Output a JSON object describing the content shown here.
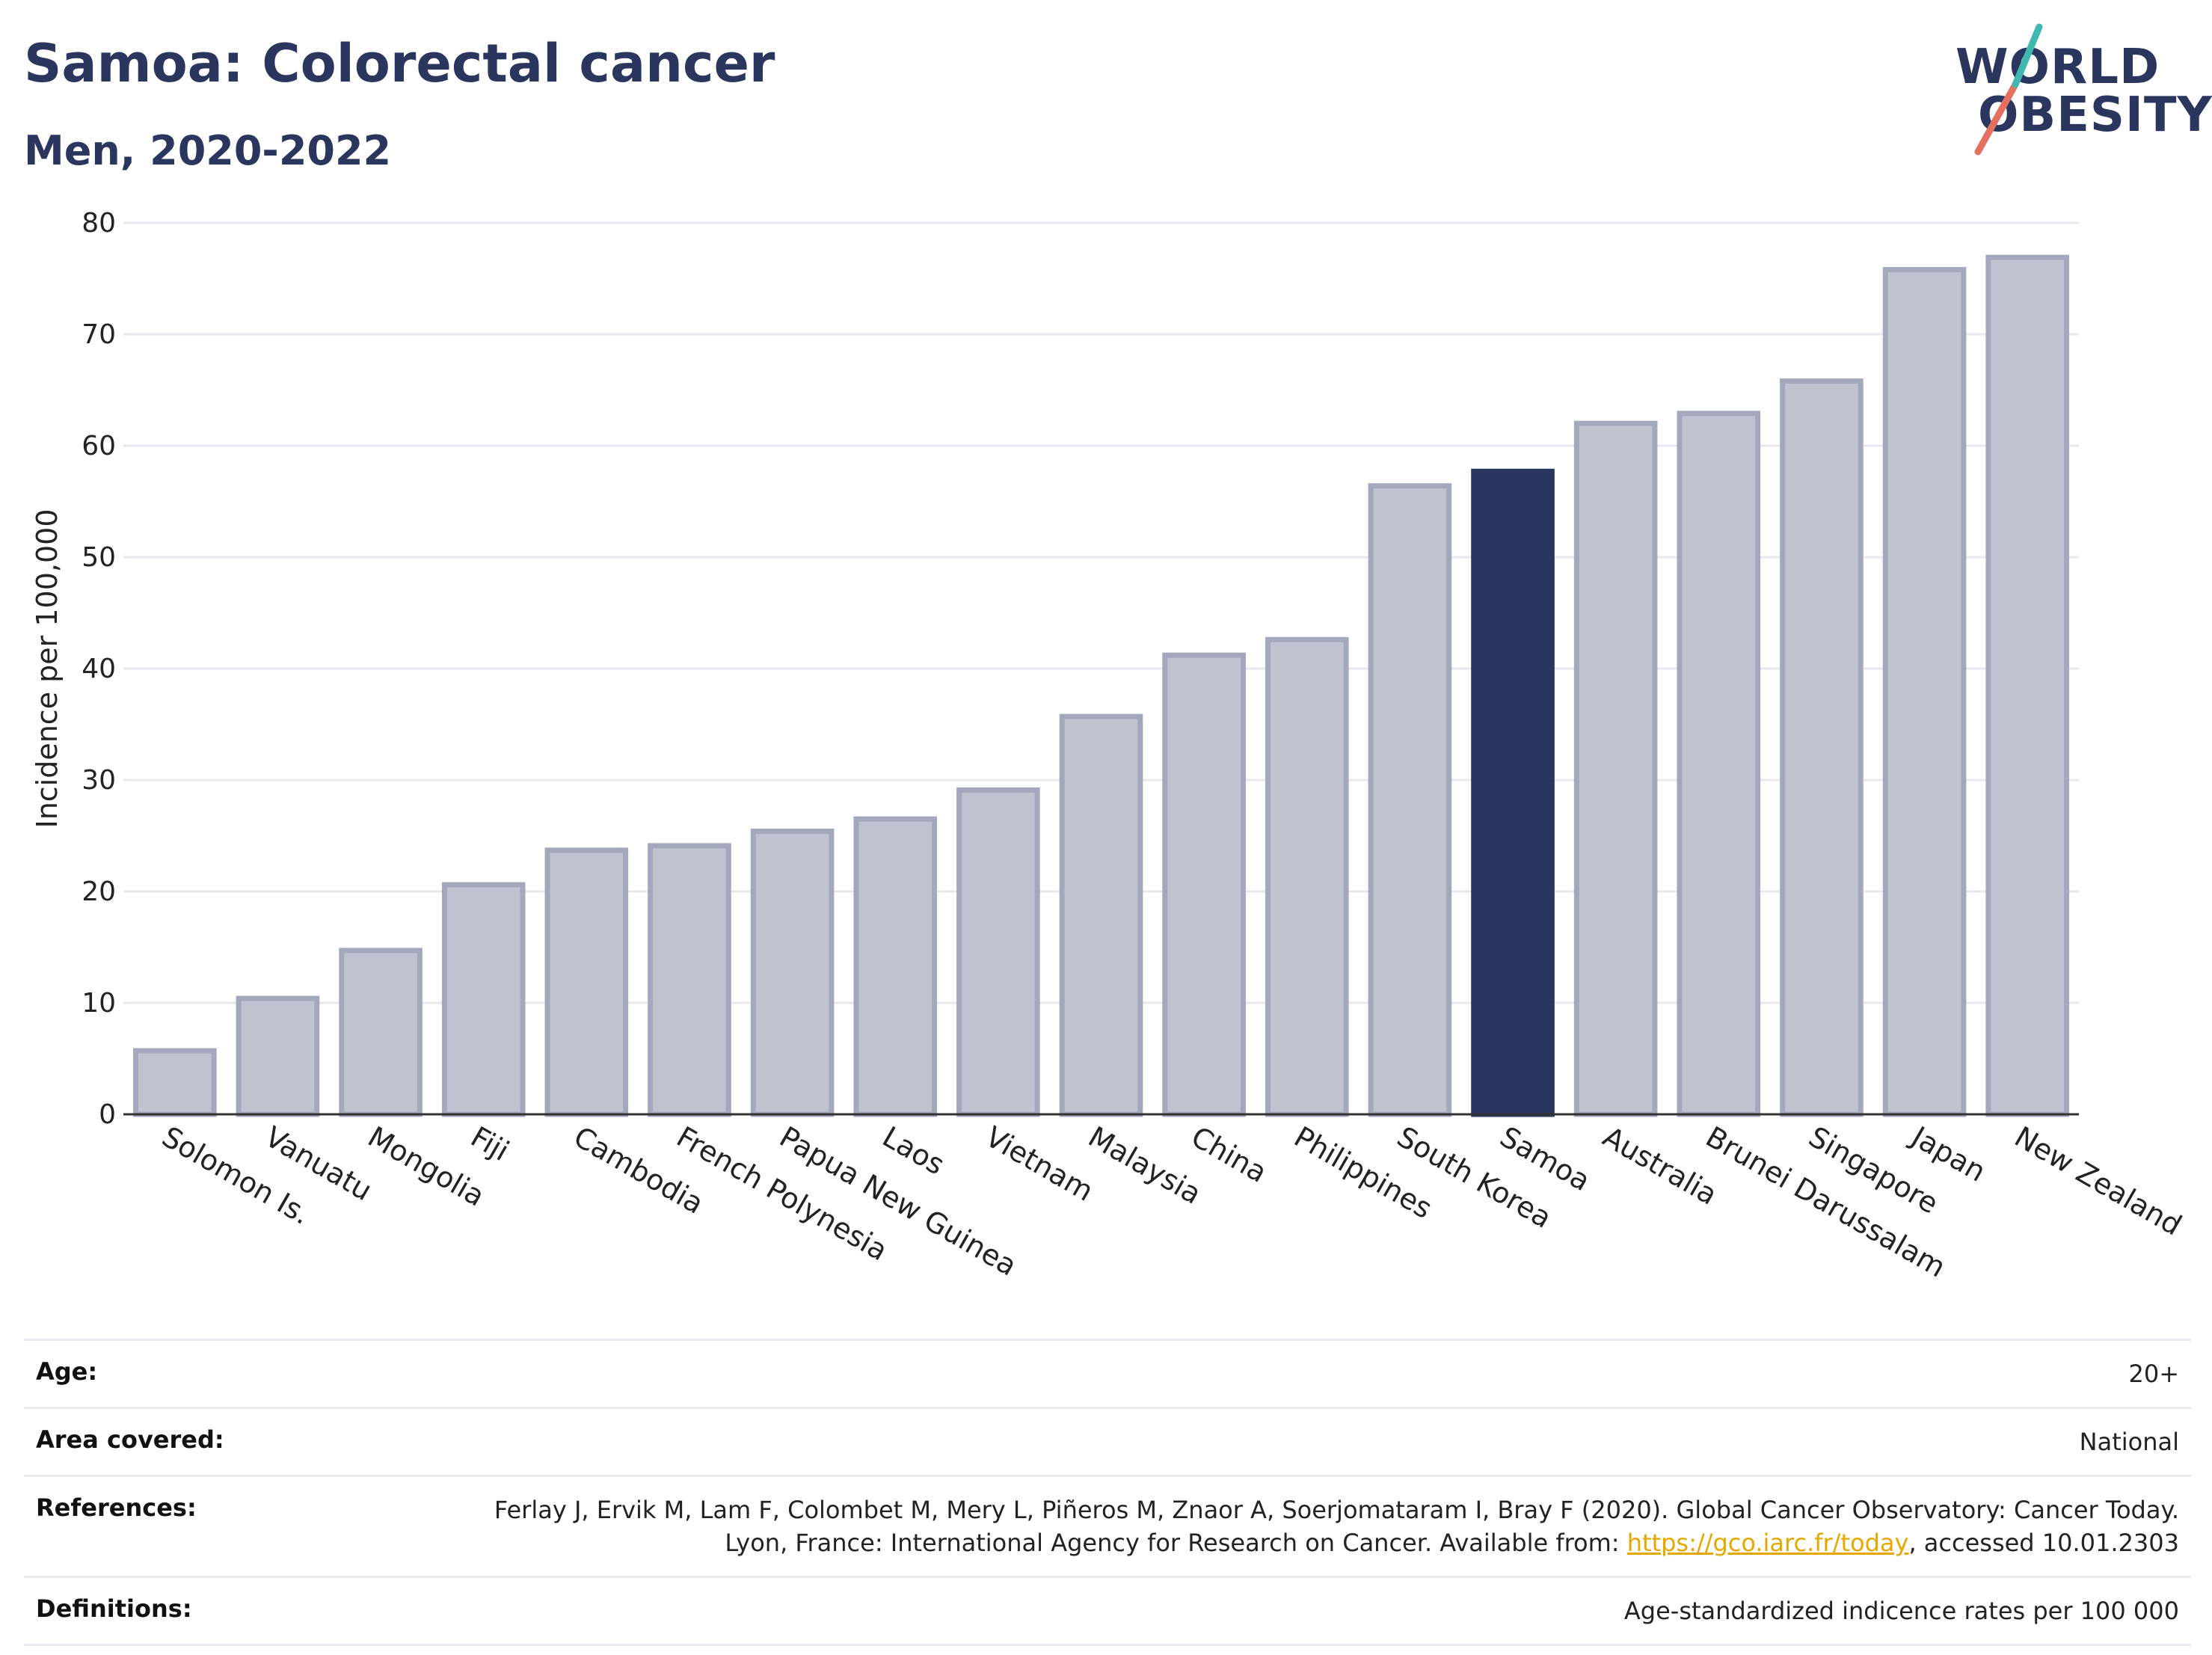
{
  "header": {
    "title": "Samoa: Colorectal cancer",
    "subtitle": "Men, 2020-2022"
  },
  "logo": {
    "line1": "WORLD",
    "line2": "OBESITY"
  },
  "chart_data": {
    "type": "bar",
    "categories": [
      "Solomon Is.",
      "Vanuatu",
      "Mongolia",
      "Fiji",
      "Cambodia",
      "French Polynesia",
      "Papua New Guinea",
      "Laos",
      "Vietnam",
      "Malaysia",
      "China",
      "Philippines",
      "South Korea",
      "Samoa",
      "Australia",
      "Brunei Darussalam",
      "Singapore",
      "Japan",
      "New Zealand"
    ],
    "values": [
      5.7,
      10.4,
      14.7,
      20.6,
      23.7,
      24.1,
      25.4,
      26.5,
      29.1,
      35.7,
      41.2,
      42.6,
      56.4,
      57.7,
      62.0,
      62.9,
      65.8,
      75.8,
      76.9
    ],
    "highlight": "Samoa",
    "ylabel": "Incidence per 100,000",
    "xlabel": "",
    "ylim": [
      0,
      80
    ],
    "yticks": [
      0,
      10,
      20,
      30,
      40,
      50,
      60,
      70,
      80
    ],
    "grid": true,
    "colors": {
      "bar": "#bfc3d0",
      "bar_border": "#a3a8bc",
      "highlight": "#2b365f",
      "grid": "#e6e8ee",
      "axis": "#333333"
    }
  },
  "footer": {
    "rows": [
      {
        "label": "Age:",
        "value": "20+"
      },
      {
        "label": "Area covered:",
        "value": "National"
      },
      {
        "label": "References:",
        "value_pre": "Ferlay J, Ervik M, Lam F, Colombet M, Mery L, Piñeros M, Znaor A, Soerjomataram I, Bray F (2020). Global Cancer Observatory: Cancer Today. Lyon, France: International Agency for Research on Cancer. Available from: ",
        "link": "https://gco.iarc.fr/today",
        "value_post": ", accessed 10.01.2303"
      },
      {
        "label": "Definitions:",
        "value": "Age-standardized indicence rates per 100 000"
      }
    ]
  }
}
